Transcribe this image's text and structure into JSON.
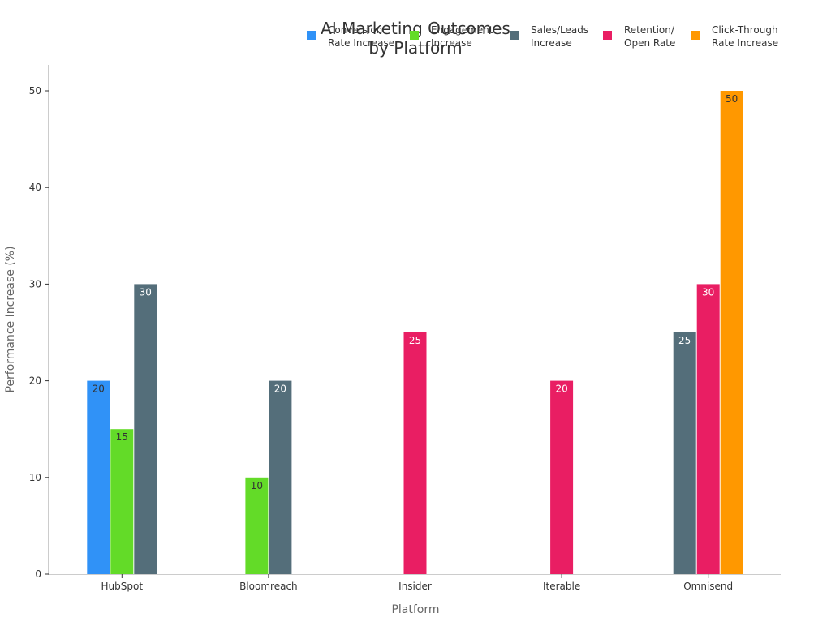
{
  "chart_data": {
    "type": "bar",
    "title_lines": [
      "AI Marketing Outcomes",
      "by Platform"
    ],
    "xlabel": "Platform",
    "ylabel": "Performance Increase (%)",
    "categories": [
      "HubSpot",
      "Bloomreach",
      "Insider",
      "Iterable",
      "Omnisend"
    ],
    "ylim": [
      0,
      52
    ],
    "yticks": [
      0,
      10,
      20,
      30,
      40,
      50
    ],
    "grid": false,
    "legend_position": "top-right",
    "series": [
      {
        "name_lines": [
          "Conversion",
          "Rate Increase"
        ],
        "color": "#3092f7",
        "label_color": "#333333",
        "values": [
          20,
          null,
          null,
          null,
          null
        ]
      },
      {
        "name_lines": [
          "Engagement",
          "Increase"
        ],
        "color": "#63db28",
        "label_color": "#333333",
        "values": [
          15,
          10,
          null,
          null,
          null
        ]
      },
      {
        "name_lines": [
          "Sales/Leads",
          "Increase"
        ],
        "color": "#546e7a",
        "label_color": "#ffffff",
        "values": [
          30,
          20,
          null,
          null,
          25
        ]
      },
      {
        "name_lines": [
          "Retention/",
          "Open Rate"
        ],
        "color": "#e91e63",
        "label_color": "#ffffff",
        "values": [
          null,
          null,
          25,
          20,
          30
        ]
      },
      {
        "name_lines": [
          "Click-Through",
          "Rate Increase"
        ],
        "color": "#ff9800",
        "label_color": "#333333",
        "values": [
          null,
          null,
          null,
          null,
          50
        ]
      }
    ]
  }
}
